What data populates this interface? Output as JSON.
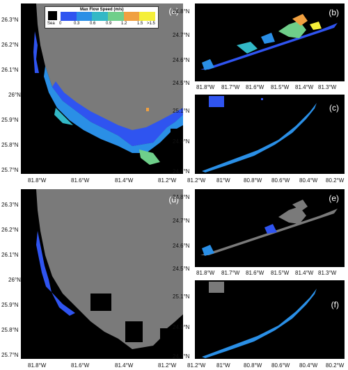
{
  "legend": {
    "title": "Max Flow Speed (m/s)",
    "sea_label": "Sea",
    "ticks": [
      "0",
      "0.3",
      "0.6",
      "0.9",
      "1.2",
      "1.5",
      ">1.5"
    ],
    "colors": [
      "#2f54f0",
      "#2a8fe6",
      "#32b8c6",
      "#6fcf8a",
      "#f0a040",
      "#f5ef3a"
    ]
  },
  "colors": {
    "sea": "#000000",
    "land": "#7a7a7a",
    "flow_low": "#2f54f0",
    "flow_mid": "#2aa8d8",
    "flow_high": "#60c87a"
  },
  "panels": {
    "a": {
      "label": "(a)",
      "y_ticks": [
        "26.3°N",
        "26.2°N",
        "26.1°N",
        "26°N",
        "25.9°N",
        "25.8°N",
        "25.7°N"
      ]
    },
    "b": {
      "label": "(b)",
      "y_ticks": [
        "24.8°N",
        "24.7°N",
        "24.6°N",
        "24.5°N"
      ],
      "x_ticks": [
        "81.8°W",
        "81.7°W",
        "81.6°W",
        "81.5°W",
        "81.4°W",
        "81.3°W"
      ]
    },
    "c": {
      "label": "(c)",
      "y_ticks": [
        "25.1°N",
        "24.9°N",
        "24.7°N"
      ],
      "x_ticks": [
        "81.2°W",
        "81°W",
        "80.8°W",
        "80.6°W",
        "80.4°W",
        "80.2°W"
      ]
    },
    "d": {
      "label": "(d)",
      "y_ticks": [
        "26.3°N",
        "26.2°N",
        "26.1°N",
        "26°N",
        "25.9°N",
        "25.8°N",
        "25.7°N"
      ]
    },
    "e": {
      "label": "(e)",
      "y_ticks": [
        "24.8°N",
        "24.7°N",
        "24.6°N",
        "24.5°N"
      ],
      "x_ticks": [
        "81.8°W",
        "81.7°W",
        "81.6°W",
        "81.5°W",
        "81.4°W",
        "81.3°W"
      ]
    },
    "f": {
      "label": "(f)",
      "y_ticks": [
        "25.1°N",
        "24.9°N",
        "24.7°N"
      ],
      "x_ticks": [
        "81.2°W",
        "81°W",
        "80.8°W",
        "80.6°W",
        "80.4°W",
        "80.2°W"
      ]
    }
  },
  "left_x_ticks": [
    "81.8°W",
    "81.6°W",
    "81.4°W",
    "81.2°W"
  ]
}
